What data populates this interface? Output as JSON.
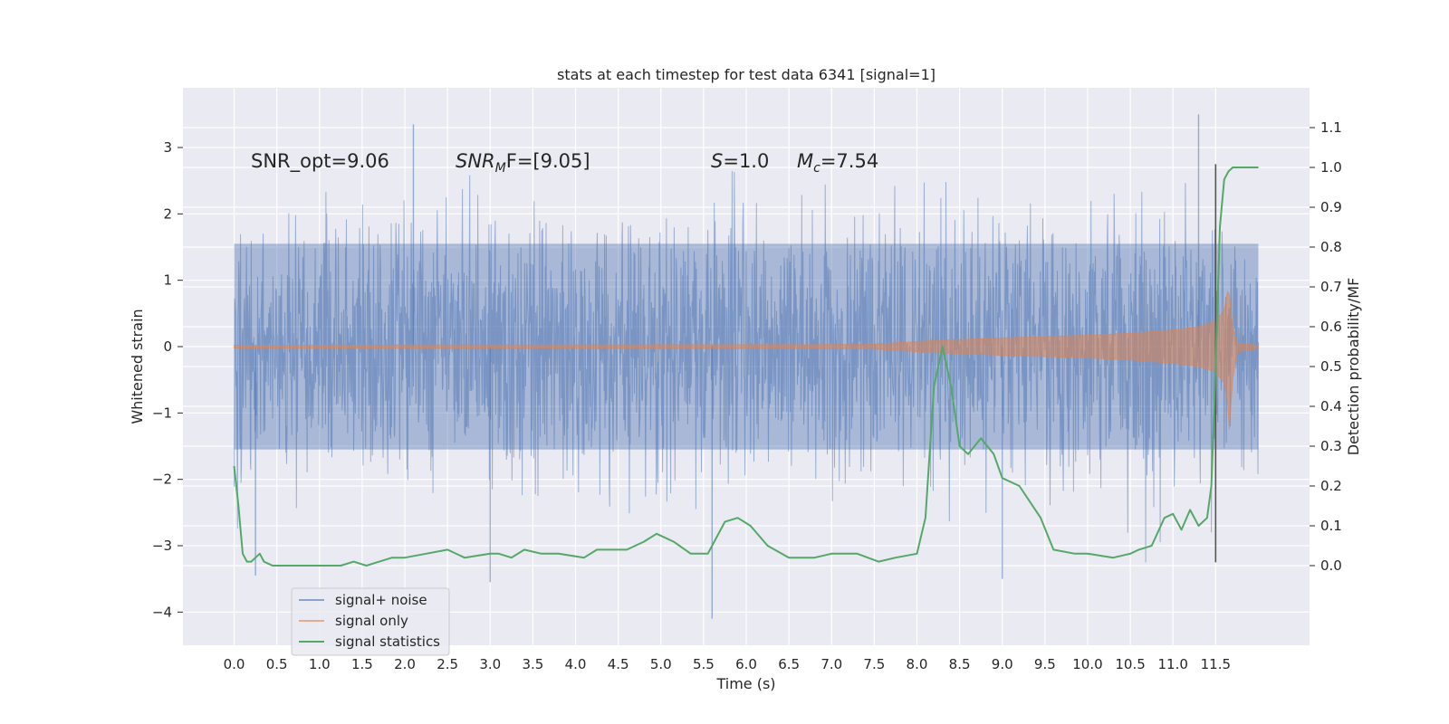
{
  "chart_data": {
    "type": "line",
    "title": "stats at each timestep for test data 6341 [signal=1]",
    "xlabel": "Time (s)",
    "ylabel": "Whitened strain",
    "y2label": "Detection probability/MF",
    "xlim": [
      -0.6,
      12.6
    ],
    "ylim": [
      -4.5,
      3.9
    ],
    "y2lim": [
      -0.2,
      1.2
    ],
    "grid": true,
    "legend": "lower-left",
    "xticks": [
      0.0,
      0.5,
      1.0,
      1.5,
      2.0,
      2.5,
      3.0,
      3.5,
      4.0,
      4.5,
      5.0,
      5.5,
      6.0,
      6.5,
      7.0,
      7.5,
      8.0,
      8.5,
      9.0,
      9.5,
      10.0,
      10.5,
      11.0,
      11.5
    ],
    "xtick_labels": [
      "0.0",
      "0.5",
      "1.0",
      "1.5",
      "2.0",
      "2.5",
      "3.0",
      "3.5",
      "4.0",
      "4.5",
      "5.0",
      "5.5",
      "6.0",
      "6.5",
      "7.0",
      "7.5",
      "8.0",
      "8.5",
      "9.0",
      "9.5",
      "10.0",
      "10.5",
      "11.0",
      "11.5"
    ],
    "yticks": [
      -4,
      -3,
      -2,
      -1,
      0,
      1,
      2,
      3
    ],
    "ytick_labels": [
      "−4",
      "−3",
      "−2",
      "−1",
      "0",
      "1",
      "2",
      "3"
    ],
    "y2ticks": [
      0.0,
      0.1,
      0.2,
      0.3,
      0.4,
      0.5,
      0.6,
      0.7,
      0.8,
      0.9,
      1.0,
      1.1
    ],
    "y2tick_labels": [
      "0.0",
      "0.1",
      "0.2",
      "0.3",
      "0.4",
      "0.5",
      "0.6",
      "0.7",
      "0.8",
      "0.9",
      "1.0",
      "1.1"
    ],
    "annotations": {
      "snr_opt": "SNR_opt=9.06",
      "snr_mf_prefix": "SNR",
      "snr_mf_sub": "M",
      "snr_mf_suffix": "F=[9.05]",
      "s_symbol": "S",
      "s_value": "=1.0",
      "mc_symbol": "M",
      "mc_sub": "c",
      "mc_value": "=7.54"
    },
    "vline_x": 11.5,
    "series": [
      {
        "name": "signal+ noise",
        "color": "#4c72b0",
        "axis": "left",
        "t_range": [
          0.0,
          12.0
        ],
        "envelope": [
          1.55,
          -1.55
        ],
        "peak_extremes": [
          [
            2.1,
            3.35
          ],
          [
            11.3,
            3.5
          ],
          [
            5.6,
            -4.1
          ],
          [
            9.0,
            -3.5
          ],
          [
            3.0,
            -3.55
          ],
          [
            0.25,
            -3.45
          ]
        ]
      },
      {
        "name": "signal only",
        "color": "#dd8452",
        "axis": "left",
        "t": [
          0,
          7.4,
          7.8,
          8.2,
          8.6,
          9.0,
          9.5,
          10.0,
          10.5,
          11.0,
          11.3,
          11.5,
          11.6,
          11.65,
          11.7,
          11.75,
          12.0
        ],
        "amplitude": [
          0.02,
          0.03,
          0.06,
          0.09,
          0.11,
          0.13,
          0.15,
          0.17,
          0.2,
          0.25,
          0.3,
          0.38,
          0.55,
          0.9,
          0.3,
          0.05,
          0.02
        ]
      },
      {
        "name": "signal statistics",
        "color": "#55a868",
        "axis": "right",
        "t": [
          0.0,
          0.05,
          0.1,
          0.15,
          0.2,
          0.25,
          0.3,
          0.35,
          0.4,
          0.45,
          0.5,
          0.75,
          1.0,
          1.25,
          1.4,
          1.55,
          1.7,
          1.85,
          2.0,
          2.25,
          2.5,
          2.7,
          3.0,
          3.1,
          3.25,
          3.4,
          3.6,
          3.8,
          4.1,
          4.25,
          4.4,
          4.6,
          4.8,
          4.95,
          5.05,
          5.15,
          5.35,
          5.55,
          5.75,
          5.9,
          6.05,
          6.25,
          6.5,
          6.8,
          7.0,
          7.15,
          7.3,
          7.55,
          7.75,
          8.0,
          8.1,
          8.2,
          8.3,
          8.4,
          8.5,
          8.6,
          8.75,
          8.9,
          9.0,
          9.2,
          9.45,
          9.6,
          9.85,
          10.0,
          10.3,
          10.5,
          10.6,
          10.75,
          10.9,
          11.0,
          11.1,
          11.2,
          11.3,
          11.4,
          11.45,
          11.5,
          11.55,
          11.6,
          11.65,
          11.7,
          11.8,
          12.0
        ],
        "values": [
          0.25,
          0.15,
          0.03,
          0.01,
          0.01,
          0.02,
          0.03,
          0.01,
          0.005,
          0.0,
          0.0,
          0.0,
          0.0,
          0.0,
          0.01,
          0.0,
          0.01,
          0.02,
          0.02,
          0.03,
          0.04,
          0.02,
          0.03,
          0.03,
          0.02,
          0.04,
          0.03,
          0.03,
          0.02,
          0.04,
          0.04,
          0.04,
          0.06,
          0.08,
          0.07,
          0.06,
          0.03,
          0.03,
          0.11,
          0.12,
          0.1,
          0.05,
          0.02,
          0.02,
          0.03,
          0.03,
          0.03,
          0.01,
          0.02,
          0.03,
          0.12,
          0.45,
          0.55,
          0.45,
          0.3,
          0.28,
          0.32,
          0.28,
          0.22,
          0.2,
          0.12,
          0.04,
          0.03,
          0.03,
          0.02,
          0.03,
          0.04,
          0.05,
          0.12,
          0.13,
          0.09,
          0.14,
          0.1,
          0.12,
          0.2,
          0.5,
          0.85,
          0.97,
          0.99,
          1.0,
          1.0,
          1.0
        ]
      }
    ]
  }
}
